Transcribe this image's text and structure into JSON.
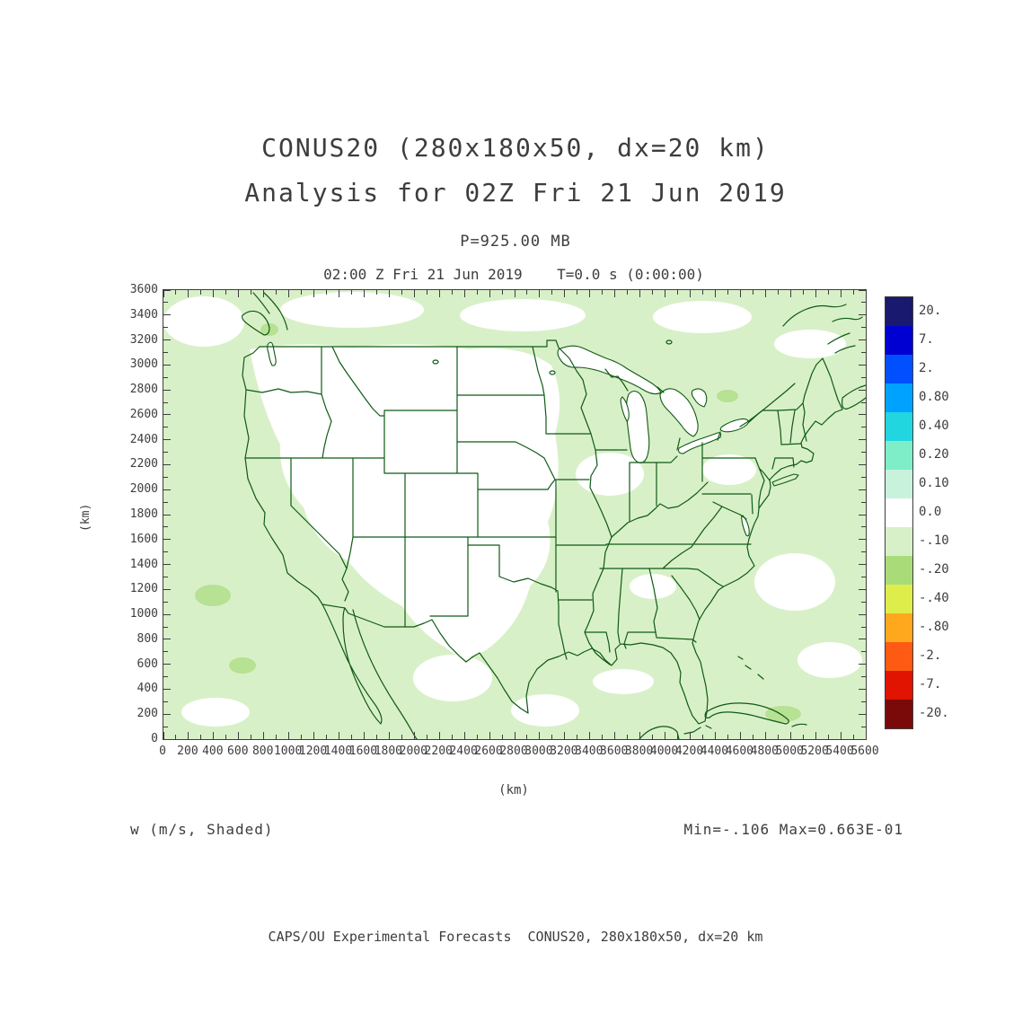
{
  "title": {
    "line1": "CONUS20 (280x180x50, dx=20 km)",
    "line2": "Analysis for 02Z Fri 21 Jun 2019"
  },
  "subtitle": "P=925.00 MB",
  "plot_header": "02:00 Z Fri 21 Jun 2019    T=0.0 s (0:00:00)",
  "field_label": "w (m/s, Shaded)",
  "minmax_label": "Min=-.106 Max=0.663E-01",
  "footer": "CAPS/OU Experimental Forecasts  CONUS20, 280x180x50, dx=20 km",
  "axes": {
    "x": {
      "label": "(km)",
      "min": 0,
      "max": 5600,
      "tick_step": 200,
      "minor_step": 100,
      "ticks": [
        0,
        200,
        400,
        600,
        800,
        1000,
        1200,
        1400,
        1600,
        1800,
        2000,
        2200,
        2400,
        2600,
        2800,
        3000,
        3200,
        3400,
        3600,
        3800,
        4000,
        4200,
        4400,
        4600,
        4800,
        5000,
        5200,
        5400,
        5600
      ]
    },
    "y": {
      "label": "(km)",
      "min": 0,
      "max": 3600,
      "tick_step": 200,
      "minor_step": 100,
      "ticks": [
        0,
        200,
        400,
        600,
        800,
        1000,
        1200,
        1400,
        1600,
        1800,
        2000,
        2200,
        2400,
        2600,
        2800,
        3000,
        3200,
        3400,
        3600
      ]
    }
  },
  "colorbar": {
    "labels": [
      "20.",
      "7.",
      "2.",
      "0.80",
      "0.40",
      "0.20",
      "0.10",
      "0.0",
      "-.10",
      "-.20",
      "-.40",
      "-.80",
      "-2.",
      "-7.",
      "-20."
    ],
    "colors": [
      "#191970",
      "#0000d2",
      "#0050ff",
      "#00a2ff",
      "#22d6e0",
      "#7deec8",
      "#c9f2dd",
      "#ffffff",
      "#d8f0c8",
      "#a9dc78",
      "#dfed4a",
      "#ffa81e",
      "#ff5a14",
      "#e01400",
      "#7a0a0a"
    ]
  },
  "colors": {
    "text": "#3d3d3d",
    "frame": "#3d3d3d",
    "map_line": "#0f5a14",
    "shade_background": "#d8f0c8",
    "shade_positive": "#ffffff",
    "shade_negative2": "#b7e193"
  },
  "chart_data": {
    "type": "heatmap",
    "title": "CONUS20 (280x180x50, dx=20 km)",
    "subtitle": "Analysis for 02Z Fri 21 Jun 2019",
    "field": "w (m/s, Shaded)",
    "level": "P=925.00 MB",
    "valid_time": "02:00 Z Fri 21 Jun 2019",
    "forecast_offset": "T=0.0 s (0:00:00)",
    "xlabel": "(km)",
    "ylabel": "(km)",
    "xlim": [
      0,
      5600
    ],
    "ylim": [
      0,
      3600
    ],
    "x_tick_step": 200,
    "y_tick_step": 200,
    "field_min": -0.106,
    "field_max": 0.0663,
    "colorbar_levels": [
      "20.",
      "7.",
      "2.",
      "0.80",
      "0.40",
      "0.20",
      "0.10",
      "0.0",
      "-.10",
      "-.20",
      "-.40",
      "-.80",
      "-2.",
      "-7.",
      "-20."
    ],
    "colorbar_colors": [
      "#191970",
      "#0000d2",
      "#0050ff",
      "#00a2ff",
      "#22d6e0",
      "#7deec8",
      "#c9f2dd",
      "#ffffff",
      "#d8f0c8",
      "#a9dc78",
      "#dfed4a",
      "#ffa81e",
      "#ff5a14",
      "#e01400",
      "#7a0a0a"
    ],
    "legend_position": "right",
    "map_region": "Continental United States with state borders; parts of Canada, Mexico (Baja California, Gulf of California), Cuba, Great Lakes",
    "dominant_shading": "most of domain between -0.10 and 0.10 m/s (pale green with white patches)"
  }
}
